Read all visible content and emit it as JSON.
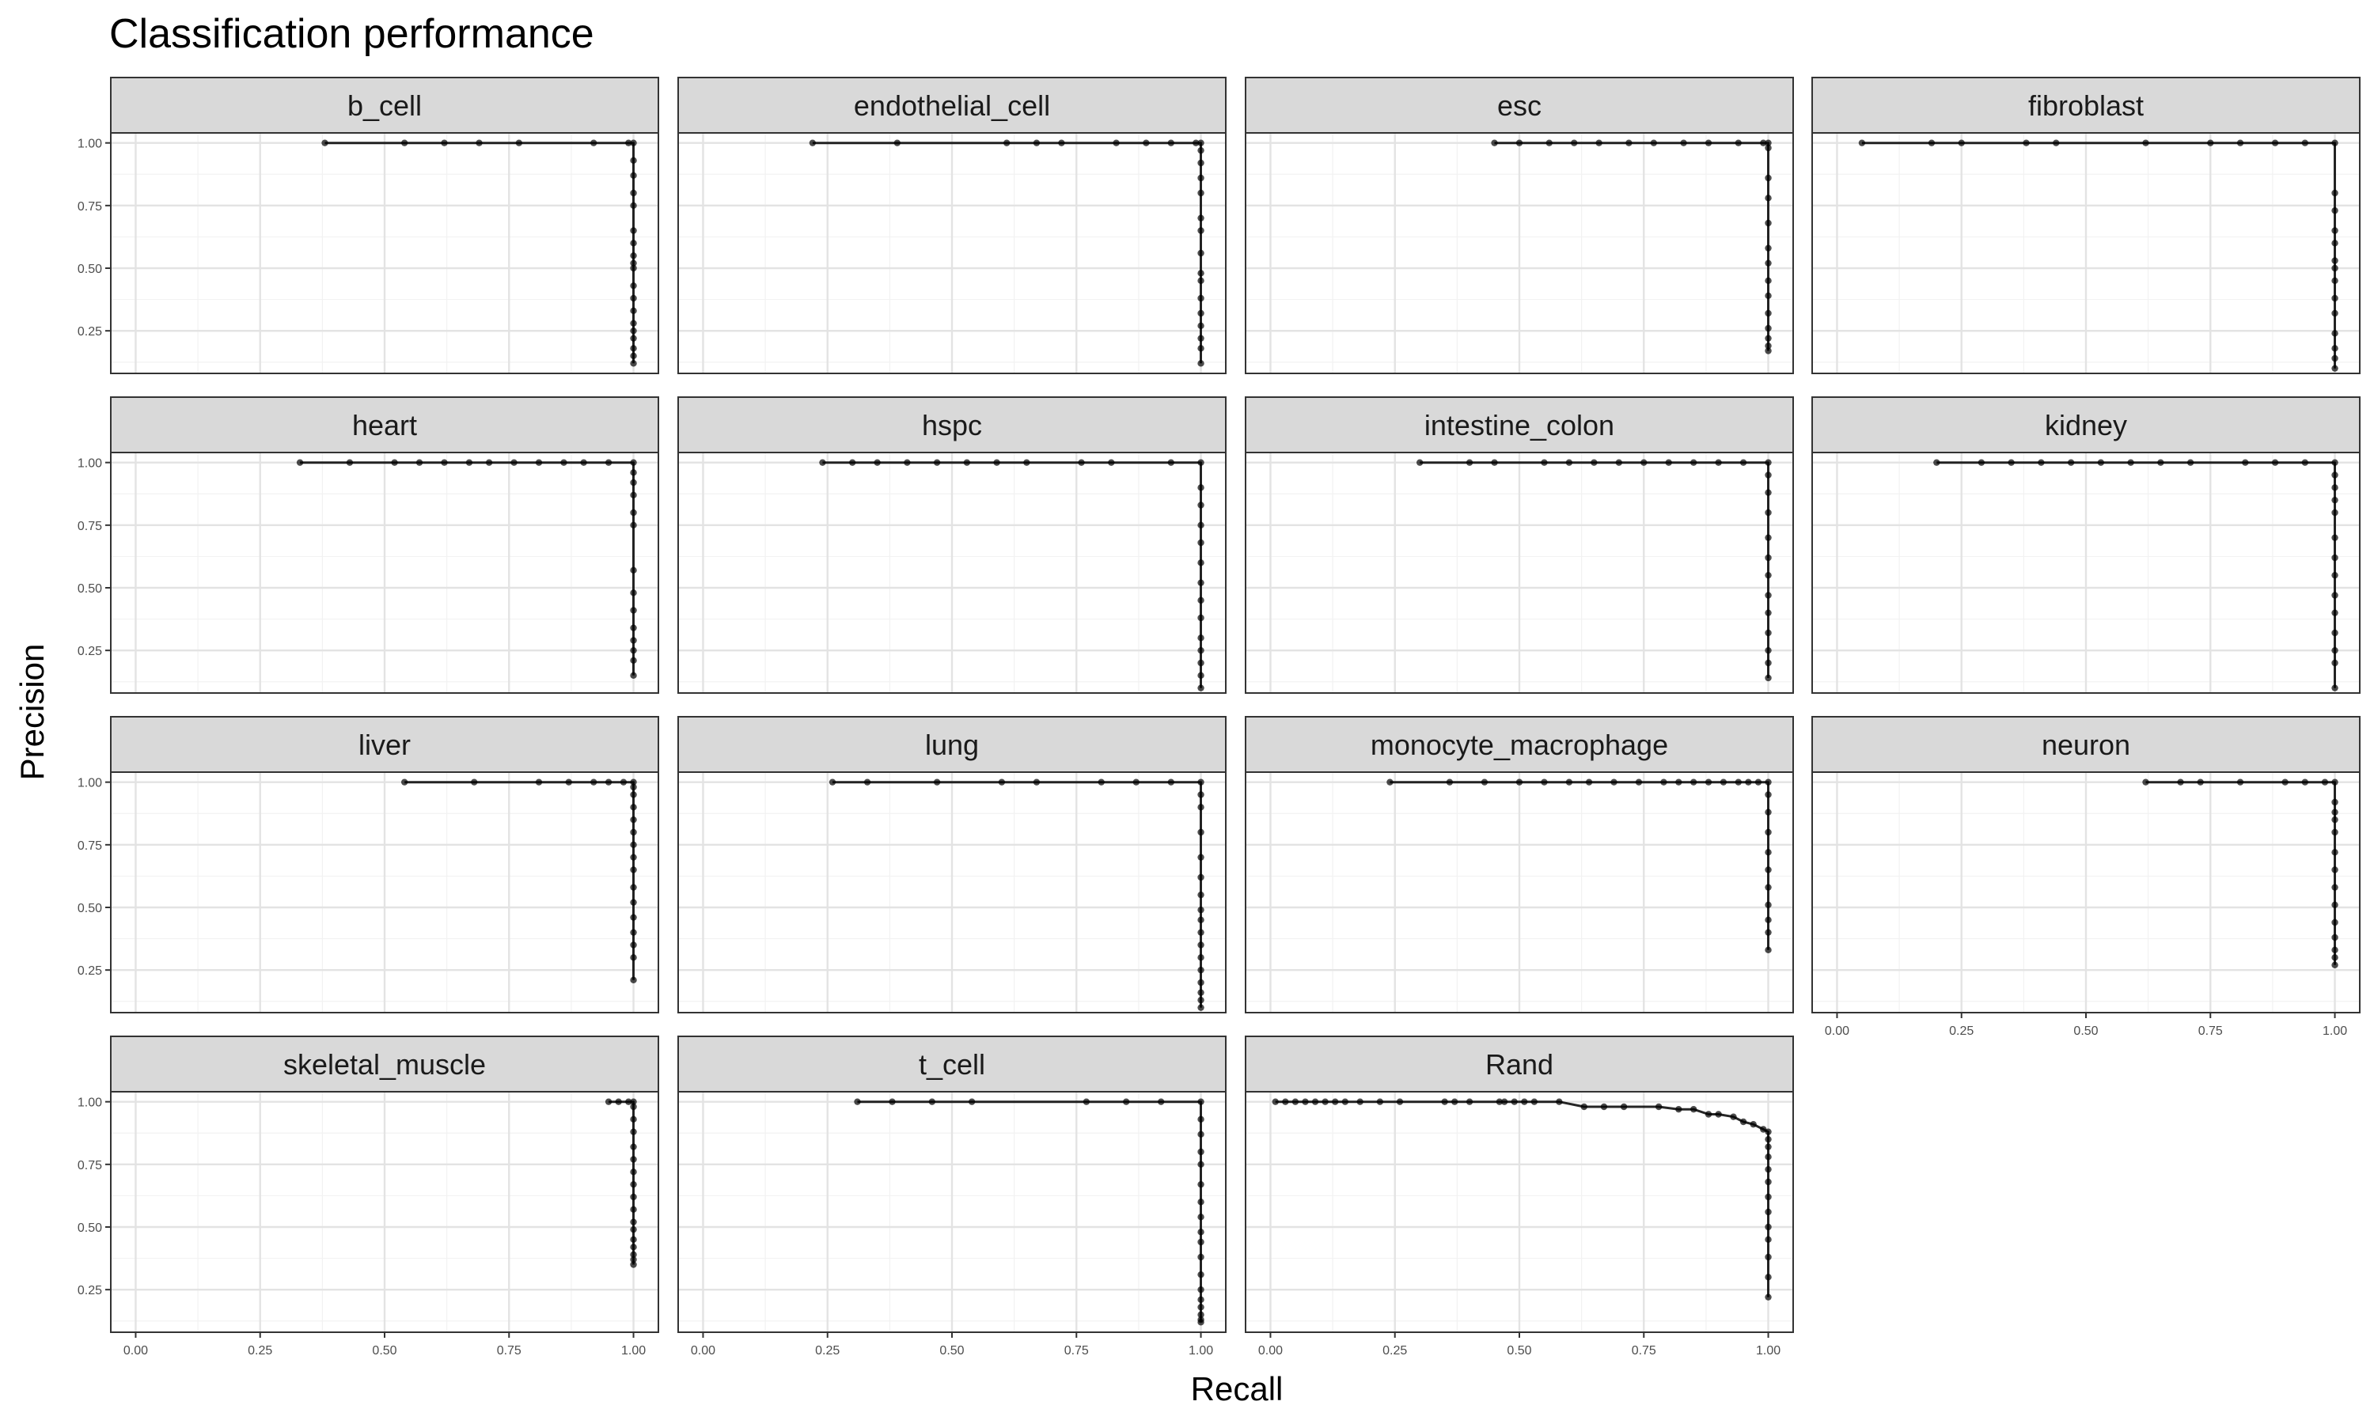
{
  "chart_data": {
    "type": "line",
    "title": "Classification performance",
    "xlabel": "Recall",
    "ylabel": "Precision",
    "xlim": [
      -0.05,
      1.05
    ],
    "ylim": [
      0.08,
      1.04
    ],
    "x_ticks": [
      "0.00",
      "0.25",
      "0.50",
      "0.75",
      "1.00"
    ],
    "y_ticks": [
      "0.25",
      "0.50",
      "0.75",
      "1.00"
    ],
    "grid": true,
    "facets": [
      {
        "name": "b_cell",
        "x": [
          0.38,
          0.54,
          0.62,
          0.69,
          0.77,
          0.92,
          0.99,
          1.0,
          1.0,
          1.0,
          1.0,
          1.0,
          1.0,
          1.0,
          1.0,
          1.0,
          1.0,
          1.0,
          1.0,
          1.0,
          1.0,
          1.0,
          1.0,
          1.0,
          1.0,
          1.0
        ],
        "y": [
          1.0,
          1.0,
          1.0,
          1.0,
          1.0,
          1.0,
          1.0,
          1.0,
          0.93,
          0.87,
          0.8,
          0.75,
          0.65,
          0.6,
          0.55,
          0.52,
          0.5,
          0.43,
          0.38,
          0.33,
          0.28,
          0.25,
          0.22,
          0.18,
          0.15,
          0.12
        ]
      },
      {
        "name": "endothelial_cell",
        "x": [
          0.22,
          0.39,
          0.61,
          0.67,
          0.72,
          0.83,
          0.89,
          0.94,
          0.99,
          1.0,
          1.0,
          1.0,
          1.0,
          1.0,
          1.0,
          1.0,
          1.0,
          1.0,
          1.0,
          1.0,
          1.0,
          1.0,
          1.0,
          1.0,
          1.0
        ],
        "y": [
          1.0,
          1.0,
          1.0,
          1.0,
          1.0,
          1.0,
          1.0,
          1.0,
          1.0,
          1.0,
          0.97,
          0.92,
          0.86,
          0.8,
          0.7,
          0.65,
          0.56,
          0.48,
          0.45,
          0.38,
          0.32,
          0.27,
          0.22,
          0.18,
          0.12
        ]
      },
      {
        "name": "esc",
        "x": [
          0.45,
          0.5,
          0.56,
          0.61,
          0.66,
          0.72,
          0.77,
          0.83,
          0.88,
          0.94,
          0.99,
          1.0,
          1.0,
          1.0,
          1.0,
          1.0,
          1.0,
          1.0,
          1.0,
          1.0,
          1.0,
          1.0,
          1.0,
          1.0,
          1.0
        ],
        "y": [
          1.0,
          1.0,
          1.0,
          1.0,
          1.0,
          1.0,
          1.0,
          1.0,
          1.0,
          1.0,
          1.0,
          1.0,
          0.98,
          0.86,
          0.78,
          0.68,
          0.58,
          0.52,
          0.45,
          0.39,
          0.32,
          0.26,
          0.22,
          0.19,
          0.17
        ]
      },
      {
        "name": "fibroblast",
        "x": [
          0.05,
          0.19,
          0.25,
          0.38,
          0.44,
          0.62,
          0.75,
          0.81,
          0.88,
          0.94,
          1.0,
          1.0,
          1.0,
          1.0,
          1.0,
          1.0,
          1.0,
          1.0,
          1.0,
          1.0,
          1.0,
          1.0,
          1.0,
          1.0
        ],
        "y": [
          1.0,
          1.0,
          1.0,
          1.0,
          1.0,
          1.0,
          1.0,
          1.0,
          1.0,
          1.0,
          1.0,
          0.8,
          0.73,
          0.65,
          0.6,
          0.53,
          0.5,
          0.45,
          0.38,
          0.32,
          0.24,
          0.18,
          0.14,
          0.1
        ]
      },
      {
        "name": "heart",
        "x": [
          0.33,
          0.43,
          0.52,
          0.57,
          0.62,
          0.67,
          0.71,
          0.76,
          0.81,
          0.86,
          0.9,
          0.95,
          1.0,
          1.0,
          1.0,
          1.0,
          1.0,
          1.0,
          1.0,
          1.0,
          1.0,
          1.0,
          1.0,
          1.0,
          1.0,
          1.0
        ],
        "y": [
          1.0,
          1.0,
          1.0,
          1.0,
          1.0,
          1.0,
          1.0,
          1.0,
          1.0,
          1.0,
          1.0,
          1.0,
          1.0,
          0.96,
          0.92,
          0.87,
          0.8,
          0.75,
          0.57,
          0.48,
          0.41,
          0.34,
          0.29,
          0.25,
          0.21,
          0.15
        ]
      },
      {
        "name": "hspc",
        "x": [
          0.24,
          0.3,
          0.35,
          0.41,
          0.47,
          0.53,
          0.59,
          0.65,
          0.76,
          0.82,
          0.94,
          1.0,
          1.0,
          1.0,
          1.0,
          1.0,
          1.0,
          1.0,
          1.0,
          1.0,
          1.0,
          1.0,
          1.0,
          1.0,
          1.0
        ],
        "y": [
          1.0,
          1.0,
          1.0,
          1.0,
          1.0,
          1.0,
          1.0,
          1.0,
          1.0,
          1.0,
          1.0,
          1.0,
          0.9,
          0.83,
          0.75,
          0.68,
          0.6,
          0.52,
          0.45,
          0.38,
          0.3,
          0.25,
          0.2,
          0.15,
          0.1
        ]
      },
      {
        "name": "intestine_colon",
        "x": [
          0.3,
          0.4,
          0.45,
          0.55,
          0.6,
          0.65,
          0.7,
          0.75,
          0.8,
          0.85,
          0.9,
          0.95,
          1.0,
          1.0,
          1.0,
          1.0,
          1.0,
          1.0,
          1.0,
          1.0,
          1.0,
          1.0,
          1.0,
          1.0,
          1.0
        ],
        "y": [
          1.0,
          1.0,
          1.0,
          1.0,
          1.0,
          1.0,
          1.0,
          1.0,
          1.0,
          1.0,
          1.0,
          1.0,
          1.0,
          0.95,
          0.88,
          0.8,
          0.7,
          0.62,
          0.55,
          0.47,
          0.4,
          0.32,
          0.25,
          0.2,
          0.14
        ]
      },
      {
        "name": "kidney",
        "x": [
          0.2,
          0.29,
          0.35,
          0.41,
          0.47,
          0.53,
          0.59,
          0.65,
          0.71,
          0.82,
          0.88,
          0.94,
          1.0,
          1.0,
          1.0,
          1.0,
          1.0,
          1.0,
          1.0,
          1.0,
          1.0,
          1.0,
          1.0,
          1.0,
          1.0,
          1.0
        ],
        "y": [
          1.0,
          1.0,
          1.0,
          1.0,
          1.0,
          1.0,
          1.0,
          1.0,
          1.0,
          1.0,
          1.0,
          1.0,
          1.0,
          0.95,
          0.9,
          0.85,
          0.8,
          0.7,
          0.62,
          0.55,
          0.47,
          0.4,
          0.32,
          0.25,
          0.2,
          0.1
        ]
      },
      {
        "name": "liver",
        "x": [
          0.54,
          0.68,
          0.81,
          0.87,
          0.92,
          0.95,
          0.98,
          1.0,
          1.0,
          1.0,
          1.0,
          1.0,
          1.0,
          1.0,
          1.0,
          1.0,
          1.0,
          1.0,
          1.0,
          1.0,
          1.0,
          1.0,
          1.0
        ],
        "y": [
          1.0,
          1.0,
          1.0,
          1.0,
          1.0,
          1.0,
          1.0,
          1.0,
          0.98,
          0.95,
          0.9,
          0.85,
          0.8,
          0.75,
          0.7,
          0.65,
          0.58,
          0.52,
          0.46,
          0.4,
          0.35,
          0.3,
          0.21
        ]
      },
      {
        "name": "lung",
        "x": [
          0.26,
          0.33,
          0.47,
          0.6,
          0.67,
          0.8,
          0.87,
          0.94,
          1.0,
          1.0,
          1.0,
          1.0,
          1.0,
          1.0,
          1.0,
          1.0,
          1.0,
          1.0,
          1.0,
          1.0,
          1.0,
          1.0,
          1.0,
          1.0,
          1.0
        ],
        "y": [
          1.0,
          1.0,
          1.0,
          1.0,
          1.0,
          1.0,
          1.0,
          1.0,
          1.0,
          0.95,
          0.9,
          0.8,
          0.7,
          0.62,
          0.55,
          0.49,
          0.45,
          0.4,
          0.35,
          0.3,
          0.25,
          0.2,
          0.16,
          0.13,
          0.1
        ]
      },
      {
        "name": "monocyte_macrophage",
        "x": [
          0.24,
          0.36,
          0.43,
          0.5,
          0.55,
          0.6,
          0.64,
          0.69,
          0.74,
          0.79,
          0.82,
          0.85,
          0.88,
          0.91,
          0.94,
          0.96,
          0.98,
          1.0,
          1.0,
          1.0,
          1.0,
          1.0,
          1.0,
          1.0,
          1.0,
          1.0,
          1.0,
          1.0
        ],
        "y": [
          1.0,
          1.0,
          1.0,
          1.0,
          1.0,
          1.0,
          1.0,
          1.0,
          1.0,
          1.0,
          1.0,
          1.0,
          1.0,
          1.0,
          1.0,
          1.0,
          1.0,
          1.0,
          0.95,
          0.88,
          0.8,
          0.72,
          0.65,
          0.58,
          0.51,
          0.45,
          0.4,
          0.33
        ]
      },
      {
        "name": "neuron",
        "x": [
          0.62,
          0.69,
          0.73,
          0.81,
          0.9,
          0.94,
          0.98,
          1.0,
          1.0,
          1.0,
          1.0,
          1.0,
          1.0,
          1.0,
          1.0,
          1.0,
          1.0,
          1.0,
          1.0,
          1.0,
          1.0
        ],
        "y": [
          1.0,
          1.0,
          1.0,
          1.0,
          1.0,
          1.0,
          1.0,
          1.0,
          0.92,
          0.88,
          0.85,
          0.8,
          0.72,
          0.65,
          0.58,
          0.51,
          0.44,
          0.38,
          0.33,
          0.3,
          0.27
        ]
      },
      {
        "name": "skeletal_muscle",
        "x": [
          0.95,
          0.97,
          0.99,
          1.0,
          1.0,
          1.0,
          1.0,
          1.0,
          1.0,
          1.0,
          1.0,
          1.0,
          1.0,
          1.0,
          1.0,
          1.0,
          1.0,
          1.0,
          1.0,
          1.0
        ],
        "y": [
          1.0,
          1.0,
          1.0,
          1.0,
          0.98,
          0.93,
          0.88,
          0.82,
          0.77,
          0.72,
          0.67,
          0.62,
          0.57,
          0.52,
          0.49,
          0.45,
          0.42,
          0.39,
          0.37,
          0.35
        ]
      },
      {
        "name": "t_cell",
        "x": [
          0.31,
          0.38,
          0.46,
          0.54,
          0.77,
          0.85,
          0.92,
          1.0,
          1.0,
          1.0,
          1.0,
          1.0,
          1.0,
          1.0,
          1.0,
          1.0,
          1.0,
          1.0,
          1.0,
          1.0,
          1.0,
          1.0,
          1.0,
          1.0,
          1.0
        ],
        "y": [
          1.0,
          1.0,
          1.0,
          1.0,
          1.0,
          1.0,
          1.0,
          1.0,
          0.93,
          0.87,
          0.8,
          0.75,
          0.67,
          0.6,
          0.54,
          0.48,
          0.44,
          0.38,
          0.31,
          0.25,
          0.21,
          0.18,
          0.15,
          0.13,
          0.12
        ]
      },
      {
        "name": "Rand",
        "x": [
          0.01,
          0.03,
          0.05,
          0.07,
          0.09,
          0.11,
          0.13,
          0.15,
          0.18,
          0.22,
          0.26,
          0.35,
          0.37,
          0.4,
          0.46,
          0.47,
          0.49,
          0.51,
          0.53,
          0.58,
          0.63,
          0.67,
          0.71,
          0.78,
          0.82,
          0.85,
          0.88,
          0.9,
          0.93,
          0.95,
          0.97,
          0.99,
          1.0,
          1.0,
          1.0,
          1.0,
          1.0,
          1.0,
          1.0,
          1.0,
          1.0,
          1.0,
          1.0,
          1.0,
          1.0
        ],
        "y": [
          1.0,
          1.0,
          1.0,
          1.0,
          1.0,
          1.0,
          1.0,
          1.0,
          1.0,
          1.0,
          1.0,
          1.0,
          1.0,
          1.0,
          1.0,
          1.0,
          1.0,
          1.0,
          1.0,
          1.0,
          0.98,
          0.98,
          0.98,
          0.98,
          0.97,
          0.97,
          0.95,
          0.95,
          0.94,
          0.92,
          0.91,
          0.89,
          0.88,
          0.85,
          0.82,
          0.78,
          0.73,
          0.68,
          0.62,
          0.56,
          0.5,
          0.45,
          0.38,
          0.3,
          0.22
        ]
      }
    ]
  }
}
